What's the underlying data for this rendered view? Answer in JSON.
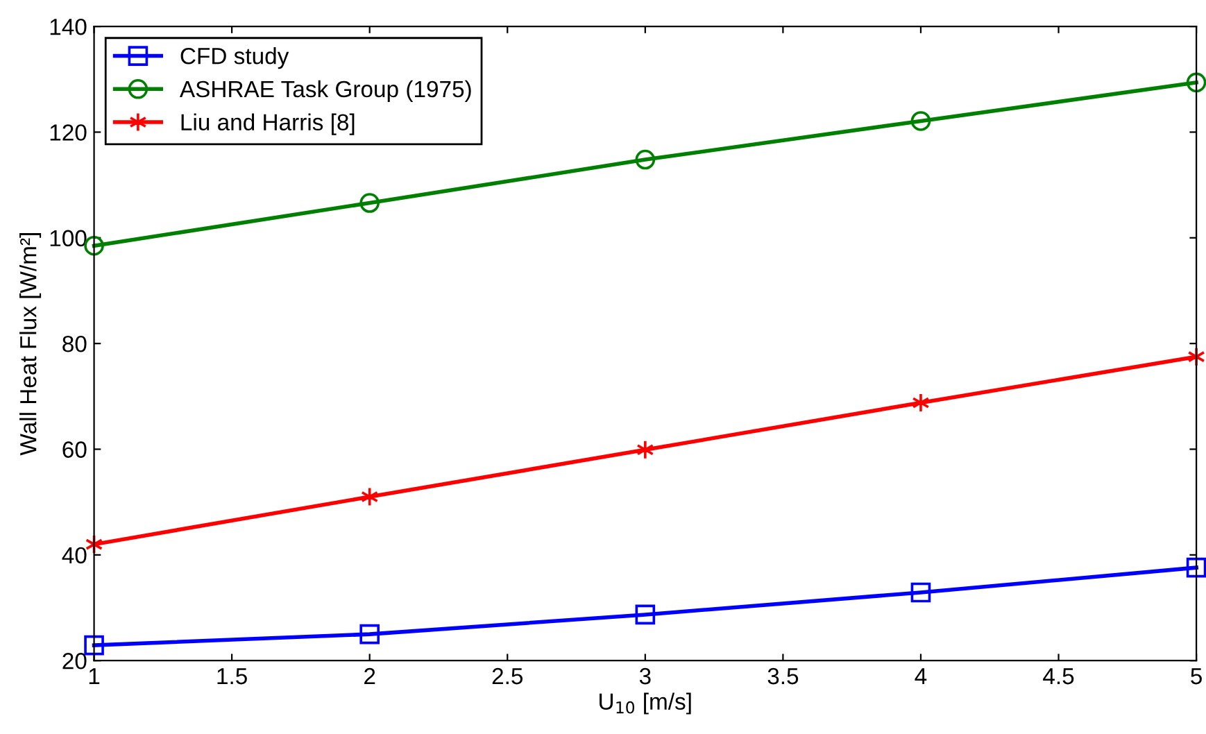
{
  "chart_data": {
    "type": "line",
    "xlabel": "U$_{10}$ [m/s]",
    "ylabel": "Wall Heat Flux [W/m²]",
    "x": [
      1,
      2,
      3,
      4,
      5
    ],
    "series": [
      {
        "name": "CFD study",
        "color": "#0000ff",
        "marker": "square",
        "values": [
          22.9,
          25.0,
          28.7,
          32.9,
          37.6
        ]
      },
      {
        "name": "ASHRAE Task Group (1975)",
        "color": "#008000",
        "marker": "circle",
        "values": [
          98.5,
          106.6,
          114.8,
          122.1,
          129.4
        ]
      },
      {
        "name": "Liu and Harris [8]",
        "color": "#ff0000",
        "marker": "cross",
        "values": [
          42.0,
          51.0,
          59.9,
          68.8,
          77.5
        ]
      }
    ],
    "xlim": [
      1,
      5
    ],
    "xticks": [
      1,
      1.5,
      2,
      2.5,
      3,
      3.5,
      4,
      4.5,
      5
    ],
    "ylim": [
      20,
      140
    ],
    "yticks": [
      20,
      40,
      60,
      80,
      100,
      120,
      140
    ],
    "grid": false,
    "legend": "top left",
    "line_style": "solid"
  }
}
